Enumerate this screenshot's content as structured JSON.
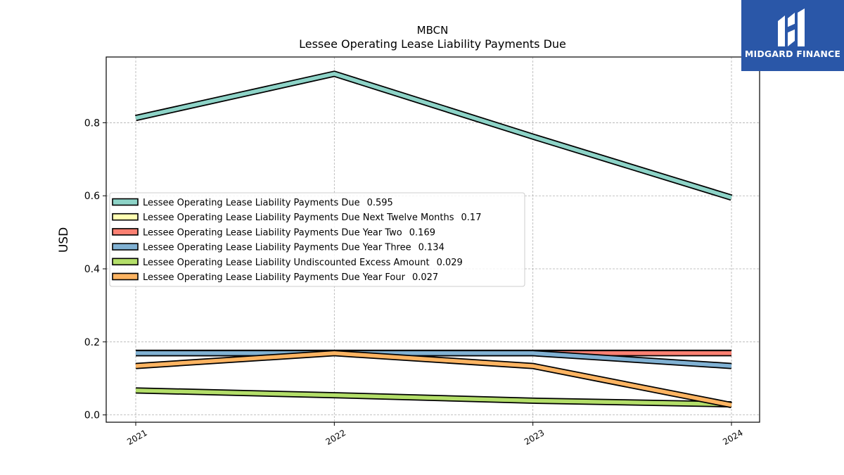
{
  "brand": {
    "name": "MIDGARD FINANCE",
    "color": "#2a57a8"
  },
  "chart_data": {
    "type": "line",
    "title": "MBCN",
    "subtitle": "Lessee Operating Lease Liability Payments Due",
    "xlabel": "",
    "ylabel": "USD",
    "categories": [
      "2021",
      "2022",
      "2023",
      "2024"
    ],
    "ylim": [
      -0.02,
      0.98
    ],
    "yticks": [
      "0.0",
      "0.2",
      "0.4",
      "0.6",
      "0.8"
    ],
    "grid": true,
    "legend_position": "center-left",
    "series": [
      {
        "name": "Lessee Operating Lease Liability Payments Due",
        "legend_value": "0.595",
        "color": "#8dd3c7",
        "values": [
          0.813,
          0.934,
          0.762,
          0.595
        ]
      },
      {
        "name": "Lessee Operating Lease Liability Payments Due Next Twelve Months",
        "legend_value": "0.17",
        "color": "#ffffb3",
        "values": [
          0.17,
          0.17,
          0.17,
          0.17
        ]
      },
      {
        "name": "Lessee Operating Lease Liability Payments Due Year Two",
        "legend_value": "0.169",
        "color": "#fb8072",
        "values": [
          0.169,
          0.169,
          0.169,
          0.169
        ]
      },
      {
        "name": "Lessee Operating Lease Liability Payments Due Year Three",
        "legend_value": "0.134",
        "color": "#80b1d3",
        "values": [
          0.169,
          0.169,
          0.169,
          0.134
        ]
      },
      {
        "name": "Lessee Operating Lease Liability Undiscounted Excess Amount",
        "legend_value": "0.029",
        "color": "#b3de69",
        "values": [
          0.067,
          0.054,
          0.039,
          0.029
        ]
      },
      {
        "name": "Lessee Operating Lease Liability Payments Due Year Four",
        "legend_value": "0.027",
        "color": "#fdb462",
        "values": [
          0.134,
          0.169,
          0.134,
          0.027
        ]
      }
    ]
  }
}
